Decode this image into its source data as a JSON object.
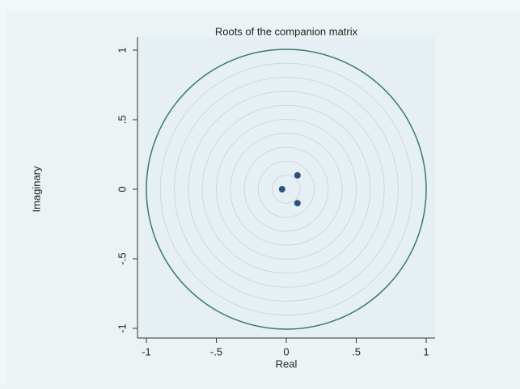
{
  "chart_data": {
    "type": "scatter",
    "title": "Roots of the companion matrix",
    "xlabel": "Real",
    "ylabel": "Imaginary",
    "x": [
      0.08,
      -0.03,
      0.08
    ],
    "y": [
      0.1,
      0,
      -0.1
    ],
    "color": "#2f4f7f",
    "xlim": [
      -1,
      1
    ],
    "ylim": [
      -1,
      1
    ],
    "xticks": [
      -1,
      {
        "value": -0.5,
        "label": "-.5"
      },
      0,
      {
        "value": 0.5,
        "label": ".5"
      },
      1
    ],
    "yticks": [
      -1,
      {
        "value": -0.5,
        "label": "-.5"
      },
      0,
      {
        "value": 0.5,
        "label": ".5"
      },
      1
    ],
    "circle": {
      "radius": 1,
      "color": "#3a7b6f"
    }
  }
}
